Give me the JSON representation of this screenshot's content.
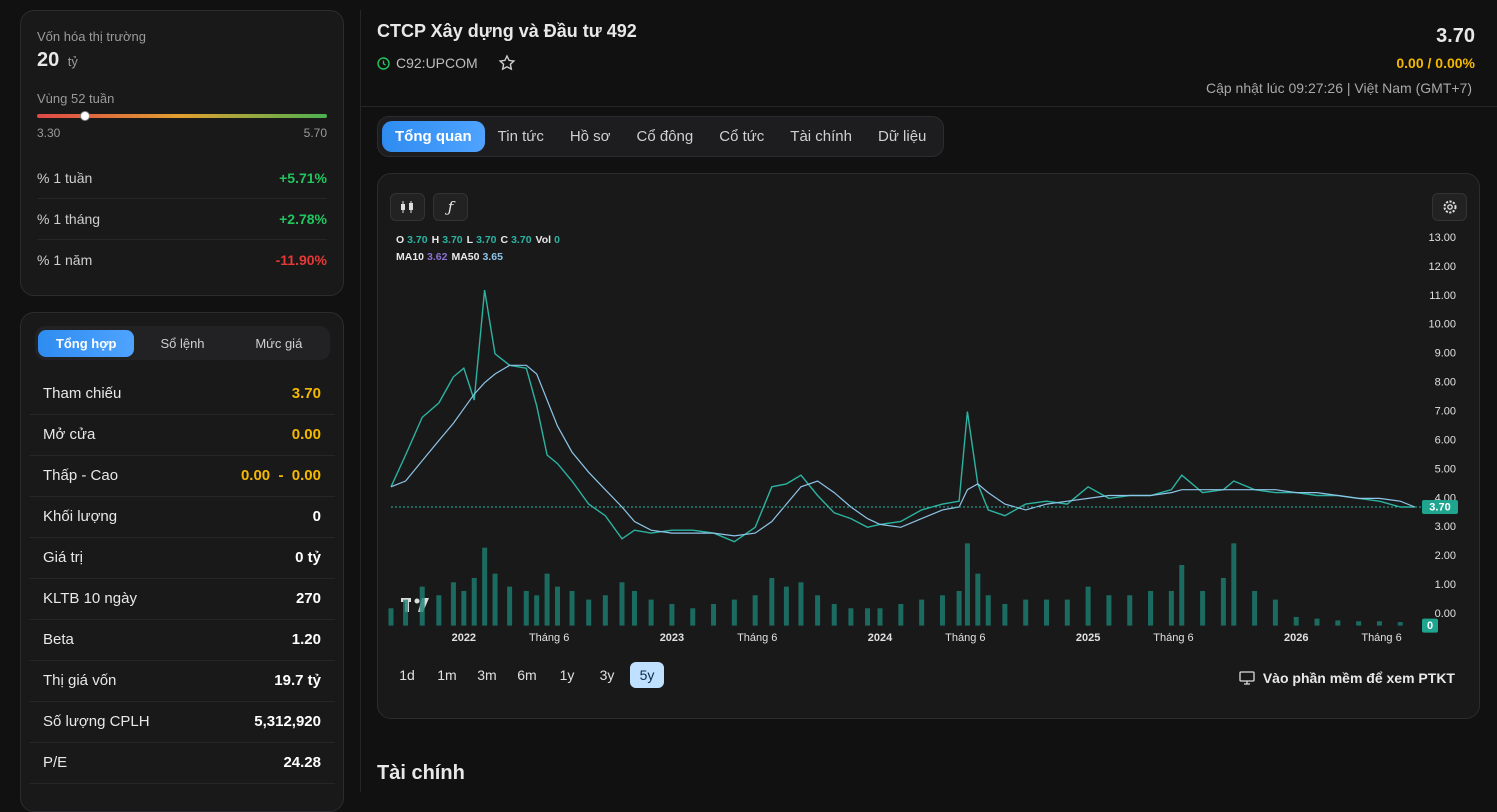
{
  "sidebar": {
    "market_cap": {
      "label": "Vốn hóa thị trường",
      "value": "20",
      "unit": "tỷ"
    },
    "range_52w": {
      "label": "Vùng 52 tuần",
      "low": {
        "value": 3.3,
        "label": "3.30"
      },
      "high": {
        "value": 5.7,
        "label": "5.70"
      },
      "current": 3.7
    },
    "changes": [
      {
        "label": "% 1 tuần",
        "value": "+5.71%",
        "color": "#22c55e"
      },
      {
        "label": "% 1 tháng",
        "value": "+2.78%",
        "color": "#22c55e"
      },
      {
        "label": "% 1 năm",
        "value": "-11.90%",
        "color": "#e53935"
      }
    ],
    "tabs": [
      "Tổng hợp",
      "Sổ lệnh",
      "Mức giá"
    ],
    "stats": [
      {
        "label": "Tham chiếu",
        "value": "3.70",
        "color": "#f5b800"
      },
      {
        "label": "Mở cửa",
        "value": "0.00",
        "color": "#f5b800"
      },
      {
        "label": "Thấp - Cao",
        "value": "0.00  -  0.00",
        "color": "#f5b800"
      },
      {
        "label": "Khối lượng",
        "value": "0",
        "color": "#ffffff"
      },
      {
        "label": "Giá trị",
        "value": "0 tỷ",
        "color": "#ffffff"
      },
      {
        "label": "KLTB 10 ngày",
        "value": "270",
        "color": "#ffffff"
      },
      {
        "label": "Beta",
        "value": "1.20",
        "color": "#ffffff"
      },
      {
        "label": "Thị giá vốn",
        "value": "19.7 tỷ",
        "color": "#ffffff"
      },
      {
        "label": "Số lượng CPLH",
        "value": "5,312,920",
        "color": "#ffffff"
      },
      {
        "label": "P/E",
        "value": "24.28",
        "color": "#ffffff"
      }
    ]
  },
  "header": {
    "title": "CTCP Xây dựng và Đầu tư 492",
    "ticker": "C92:UPCOM",
    "price": "3.70",
    "change": "0.00 / 0.00%",
    "updated": "Cập nhật lúc 09:27:26 | Việt Nam (GMT+7)"
  },
  "tabs": [
    "Tổng quan",
    "Tin tức",
    "Hồ sơ",
    "Cổ đông",
    "Cổ tức",
    "Tài chính",
    "Dữ liệu"
  ],
  "chart_data": {
    "type": "line",
    "x": [
      2021.65,
      2021.72,
      2021.8,
      2021.88,
      2021.95,
      2022.0,
      2022.05,
      2022.1,
      2022.15,
      2022.22,
      2022.3,
      2022.35,
      2022.4,
      2022.45,
      2022.52,
      2022.6,
      2022.68,
      2022.76,
      2022.82,
      2022.9,
      2023.0,
      2023.1,
      2023.2,
      2023.3,
      2023.4,
      2023.48,
      2023.55,
      2023.62,
      2023.7,
      2023.78,
      2023.86,
      2023.94,
      2024.0,
      2024.1,
      2024.2,
      2024.3,
      2024.38,
      2024.42,
      2024.47,
      2024.52,
      2024.6,
      2024.7,
      2024.8,
      2024.9,
      2025.0,
      2025.1,
      2025.2,
      2025.3,
      2025.4,
      2025.45,
      2025.55,
      2025.65,
      2025.7,
      2025.8,
      2025.9,
      2026.0,
      2026.1,
      2026.2,
      2026.3,
      2026.4,
      2026.5,
      2026.57
    ],
    "series": [
      {
        "color": "#2bb3a0",
        "values": [
          4.4,
          5.5,
          6.8,
          7.3,
          8.2,
          8.5,
          7.4,
          11.2,
          9.0,
          8.6,
          8.5,
          7.2,
          5.5,
          5.2,
          4.6,
          3.8,
          3.4,
          2.6,
          2.9,
          2.8,
          2.9,
          2.9,
          2.8,
          2.5,
          3.0,
          4.4,
          4.5,
          4.8,
          4.1,
          3.5,
          3.3,
          3.0,
          3.1,
          3.2,
          3.6,
          3.8,
          3.9,
          7.0,
          4.5,
          3.6,
          3.4,
          3.8,
          3.9,
          3.8,
          4.4,
          4.0,
          4.1,
          4.1,
          4.3,
          4.8,
          4.2,
          4.3,
          4.6,
          4.3,
          4.2,
          4.2,
          4.1,
          4.1,
          4.0,
          3.9,
          3.7,
          3.7
        ]
      },
      {
        "color": "#8ec5e8",
        "values": [
          4.4,
          4.6,
          5.3,
          6.0,
          6.6,
          7.1,
          7.6,
          8.0,
          8.3,
          8.6,
          8.6,
          8.3,
          7.4,
          6.5,
          5.6,
          4.9,
          4.3,
          3.7,
          3.2,
          2.9,
          2.8,
          2.8,
          2.8,
          2.7,
          2.8,
          3.2,
          3.8,
          4.4,
          4.6,
          4.2,
          3.7,
          3.3,
          3.1,
          3.0,
          3.3,
          3.6,
          3.7,
          4.3,
          4.5,
          4.2,
          3.8,
          3.6,
          3.8,
          3.9,
          4.0,
          4.1,
          4.1,
          4.1,
          4.2,
          4.3,
          4.3,
          4.3,
          4.3,
          4.3,
          4.3,
          4.2,
          4.2,
          4.1,
          4.0,
          4.0,
          3.9,
          3.7
        ]
      },
      {
        "color": "#1d7f72",
        "axis": "y2",
        "values": [
          20,
          30,
          45,
          35,
          50,
          40,
          55,
          90,
          60,
          45,
          40,
          35,
          60,
          45,
          40,
          30,
          35,
          50,
          40,
          30,
          25,
          20,
          25,
          30,
          35,
          55,
          45,
          50,
          35,
          25,
          20,
          20,
          20,
          25,
          30,
          35,
          40,
          95,
          60,
          35,
          25,
          30,
          30,
          30,
          45,
          35,
          35,
          40,
          40,
          70,
          40,
          55,
          95,
          40,
          30,
          10,
          8,
          6,
          5,
          5,
          4,
          0
        ]
      }
    ],
    "xlim": [
      2021.65,
      2026.59
    ],
    "xticks": [
      {
        "value": 2022,
        "label": "2022"
      },
      {
        "value": 2022.41,
        "label": "Tháng 6"
      },
      {
        "value": 2023,
        "label": "2023"
      },
      {
        "value": 2023.41,
        "label": "Tháng 6"
      },
      {
        "value": 2024,
        "label": "2024"
      },
      {
        "value": 2024.41,
        "label": "Tháng 6"
      },
      {
        "value": 2025,
        "label": "2025"
      },
      {
        "value": 2025.41,
        "label": "Tháng 6"
      },
      {
        "value": 2026,
        "label": "2026"
      },
      {
        "value": 2026.41,
        "label": "Tháng 6"
      }
    ],
    "ylim": [
      -0.4,
      13.3
    ],
    "yticks": [
      {
        "value": 0,
        "label": "0.00"
      },
      {
        "value": 1,
        "label": "1.00"
      },
      {
        "value": 2,
        "label": "2.00"
      },
      {
        "value": 3,
        "label": "3.00"
      },
      {
        "value": 4,
        "label": "4.00"
      },
      {
        "value": 5,
        "label": "5.00"
      },
      {
        "value": 6,
        "label": "6.00"
      },
      {
        "value": 7,
        "label": "7.00"
      },
      {
        "value": 8,
        "label": "8.00"
      },
      {
        "value": 9,
        "label": "9.00"
      },
      {
        "value": 10,
        "label": "10.00"
      },
      {
        "value": 11,
        "label": "11.00"
      },
      {
        "value": 12,
        "label": "12.00"
      },
      {
        "value": 13,
        "label": "13.00"
      }
    ],
    "y2lim": [
      0,
      100
    ],
    "y2ticks": [
      0
    ],
    "last_price": {
      "value": 3.7,
      "label": "3.70"
    },
    "legend": [
      [
        {
          "label": "O",
          "value": "3.70",
          "color": "#2bb3a0"
        },
        {
          "label": "H",
          "value": "3.70",
          "color": "#2bb3a0"
        },
        {
          "label": "L",
          "value": "3.70",
          "color": "#2bb3a0"
        },
        {
          "label": "C",
          "value": "3.70",
          "color": "#2bb3a0"
        },
        {
          "label": "Vol",
          "value": "0",
          "color": "#2bb3a0"
        }
      ],
      [
        {
          "label": "MA10",
          "value": "3.62",
          "color": "#8c6fd0"
        },
        {
          "label": "MA50",
          "value": "3.65",
          "color": "#8ec5e8"
        }
      ]
    ]
  },
  "ranges": [
    "1d",
    "1m",
    "3m",
    "6m",
    "1y",
    "3y",
    "5y"
  ],
  "active_range": "5y",
  "software_link": "Vào phần mềm để xem PTKT",
  "section_title": "Tài chính"
}
